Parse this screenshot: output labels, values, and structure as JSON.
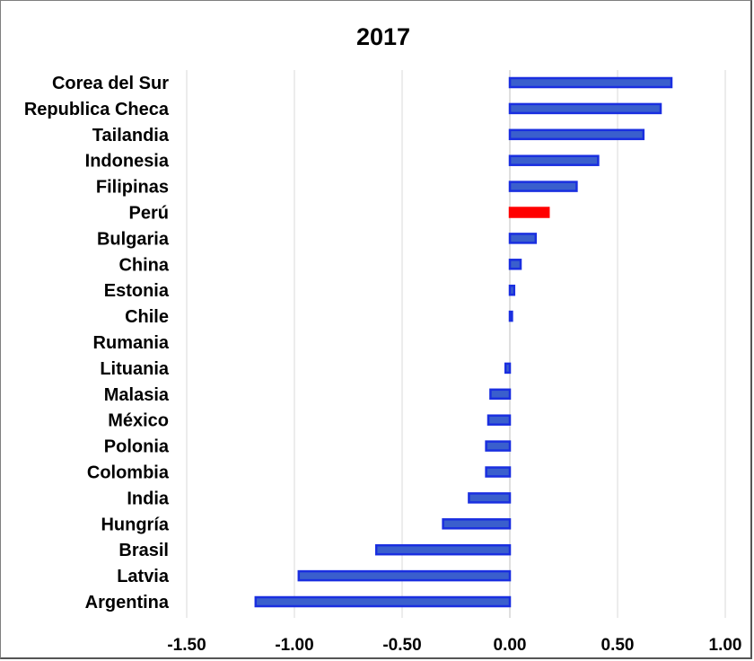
{
  "chart_data": {
    "type": "bar",
    "orientation": "horizontal",
    "title": "2017",
    "categories": [
      "Corea del Sur",
      "Republica Checa",
      "Tailandia",
      "Indonesia",
      "Filipinas",
      "Perú",
      "Bulgaria",
      "China",
      "Estonia",
      "Chile",
      "Rumania",
      "Lituania",
      "Malasia",
      "México",
      "Polonia",
      "Colombia",
      "India",
      "Hungría",
      "Brasil",
      "Latvia",
      "Argentina"
    ],
    "values": [
      0.75,
      0.7,
      0.62,
      0.41,
      0.31,
      0.18,
      0.12,
      0.05,
      0.02,
      0.01,
      0.0,
      -0.02,
      -0.09,
      -0.1,
      -0.11,
      -0.11,
      -0.19,
      -0.31,
      -0.62,
      -0.98,
      -1.18
    ],
    "highlight_category": "Perú",
    "colors": {
      "bar_fill": "#3a5fcd",
      "bar_edge": "#1a2fe0",
      "highlight": "#ff0000"
    },
    "x_ticks": [
      "-1.50",
      "-1.00",
      "-0.50",
      "0.00",
      "0.50",
      "1.00"
    ],
    "xlim": [
      -1.5,
      1.0
    ],
    "grid": "vertical"
  }
}
